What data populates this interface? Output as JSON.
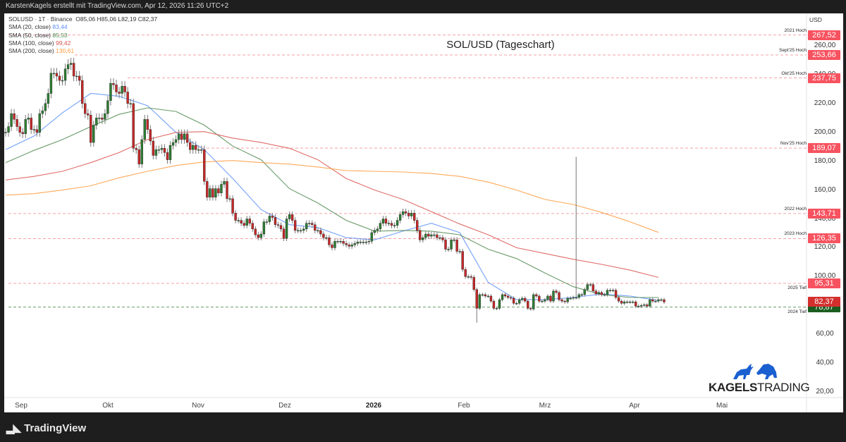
{
  "header": {
    "attribution": "KarstenKagels erstellt mit TradingView.com, Apr 12, 2026 11:26 UTC+2"
  },
  "legend": {
    "symbol_line": "SOLUSD · 1T · Binance",
    "ohlc": {
      "open": "O85,06",
      "high": "H85,06",
      "low": "L82,19",
      "close": "C82,37"
    },
    "indicators": [
      {
        "label": "SMA (20, close)",
        "value": "83,44",
        "color": "#5b8ff9"
      },
      {
        "label": "SMA (50, close)",
        "value": "85,53",
        "color": "#4f8a4f"
      },
      {
        "label": "SMA (100, close)",
        "value": "99,42",
        "color": "#d9534f"
      },
      {
        "label": "SMA (200, close)",
        "value": "130,61",
        "color": "#ff9a3c"
      }
    ]
  },
  "chart_data": {
    "type": "candlestick",
    "title": "SOL/USD (Tageschart)",
    "currency": "USD",
    "ylim": [
      10,
      275
    ],
    "y_ticks": [
      "260,00",
      "240,00",
      "220,00",
      "200,00",
      "180,00",
      "160,00",
      "140,00",
      "120,00",
      "100,00",
      "80,00",
      "60,00",
      "40,00",
      "20,00"
    ],
    "y_tick_values": [
      260,
      240,
      220,
      200,
      180,
      160,
      140,
      120,
      100,
      80,
      60,
      40,
      20
    ],
    "x_ticks": [
      "Sep",
      "Okt",
      "Nov",
      "Dez",
      "2026",
      "Feb",
      "Mrz",
      "Apr",
      "Mai"
    ],
    "grid": false,
    "daily_closes": [
      200,
      204,
      213,
      209,
      204,
      200,
      199,
      209,
      210,
      202,
      202,
      200,
      213,
      215,
      220,
      227,
      241,
      241,
      239,
      236,
      236,
      244,
      247,
      248,
      239,
      239,
      236,
      220,
      213,
      212,
      193,
      205,
      210,
      210,
      209,
      213,
      222,
      234,
      233,
      228,
      227,
      232,
      228,
      220,
      220,
      189,
      188,
      178,
      195,
      209,
      202,
      194,
      184,
      188,
      188,
      189,
      186,
      181,
      191,
      193,
      195,
      199,
      195,
      199,
      193,
      188,
      191,
      188,
      188,
      188,
      166,
      155,
      161,
      155,
      161,
      158,
      164,
      166,
      154,
      154,
      144,
      139,
      139,
      137,
      135.5,
      140,
      137,
      133,
      129,
      127,
      129.5,
      138,
      138,
      142,
      141,
      136,
      135.5,
      133,
      126.5,
      140,
      143,
      139,
      132,
      132,
      132,
      133,
      137,
      137,
      136,
      132,
      132,
      129.5,
      127,
      127,
      122,
      120,
      124.5,
      124.5,
      124.5,
      123,
      122,
      121,
      122,
      123,
      124,
      124,
      124,
      124,
      124.5,
      130.5,
      132,
      133,
      137,
      140,
      137,
      137,
      135.5,
      135.5,
      139,
      143,
      145,
      144,
      142,
      144,
      139,
      132,
      125.5,
      127,
      129.5,
      128,
      129,
      129,
      127,
      127,
      125.5,
      119,
      119,
      125.5,
      125.5,
      117.5,
      117.5,
      105,
      100,
      100,
      99.5,
      91,
      78,
      87.5,
      87.5,
      86.5,
      86.5,
      83,
      78,
      78,
      84,
      87.5,
      86.5,
      85.5,
      85,
      81.5,
      81.5,
      84,
      85,
      83,
      78,
      77.5,
      87.5,
      86.5,
      83,
      83,
      84,
      86.5,
      83,
      90,
      89,
      84,
      83,
      82.5,
      85,
      85,
      85.5,
      85.5,
      87.5,
      87.5,
      91,
      94.5,
      94.5,
      90,
      88,
      89,
      87.5,
      87.5,
      90.5,
      90.5,
      90.5,
      85.5,
      83,
      81.5,
      82.5,
      82.5,
      82.5,
      82.5,
      79.5,
      79.5,
      80,
      80.5,
      79.5,
      84,
      83,
      83,
      84,
      84,
      82.37
    ],
    "wick_extremes": [
      {
        "candle": 201,
        "high": 183
      },
      {
        "candle": 166,
        "low": 68
      }
    ],
    "sma_series": [
      {
        "name": "SMA (20, close)",
        "color": "#5b8ff9",
        "values": [
          188,
          197.5,
          213.5,
          227,
          225,
          218.5,
          200,
          188,
          168,
          146.5,
          136,
          134,
          127,
          125.5,
          131.5,
          137,
          130.5,
          96,
          84,
          84,
          85.5,
          88,
          86.5,
          83.44
        ]
      },
      {
        "name": "SMA (50, close)",
        "color": "#4f8a4f",
        "values": [
          179,
          187.5,
          195,
          204,
          212.5,
          217,
          214.5,
          205,
          190.5,
          181,
          161,
          151,
          139,
          131.5,
          132,
          131.5,
          129,
          119,
          112.5,
          102.5,
          93,
          87.5,
          85.5,
          85.53
        ]
      },
      {
        "name": "SMA (100, close)",
        "color": "#d9534f",
        "values": [
          167,
          169.5,
          173,
          179,
          186,
          195,
          200,
          200.5,
          196,
          193,
          189,
          181,
          168,
          160,
          153.5,
          145,
          136.5,
          129,
          120,
          116,
          112,
          108.5,
          104.5,
          99.42
        ]
      },
      {
        "name": "SMA (200, close)",
        "color": "#ff9a3c",
        "values": [
          156.5,
          157.5,
          160,
          163,
          168.5,
          173,
          177,
          179.5,
          180.5,
          179,
          178,
          176,
          173.5,
          173,
          172.5,
          171.5,
          169.5,
          165.5,
          160,
          153.5,
          150,
          144.5,
          138,
          130.61
        ]
      }
    ],
    "levels": [
      {
        "name": "2021 Hoch",
        "price": 267.52,
        "label": "267,52",
        "color": "#f7525f"
      },
      {
        "name": "Sept'25 Hoch",
        "price": 253.66,
        "label": "253,66",
        "color": "#f7525f"
      },
      {
        "name": "Okt'25 Hoch",
        "price": 237.75,
        "label": "237,75",
        "color": "#f7525f"
      },
      {
        "name": "Nov'25 Hoch",
        "price": 189.07,
        "label": "189,07",
        "color": "#f7525f"
      },
      {
        "name": "2022 Hoch",
        "price": 143.71,
        "label": "143,71",
        "color": "#f7525f"
      },
      {
        "name": "2023 Hoch",
        "price": 126.35,
        "label": "126,35",
        "color": "#f7525f"
      },
      {
        "name": "2025 Tief",
        "price": 95.31,
        "label": "95,31",
        "color": "#f7525f"
      },
      {
        "name": "2024 Tief",
        "price": 78.87,
        "label": "78,87",
        "color": "#1b5e20"
      }
    ],
    "last_price": {
      "label": "82,37",
      "value": 82.37,
      "color": "#d32f2f"
    },
    "colors": {
      "up": "#2e7d32",
      "down": "#c62828"
    }
  },
  "branding": {
    "logo_left": "KAGELS",
    "logo_right": "TRADING",
    "logo_color": "#1a5fd0",
    "footer": "TradingView"
  }
}
